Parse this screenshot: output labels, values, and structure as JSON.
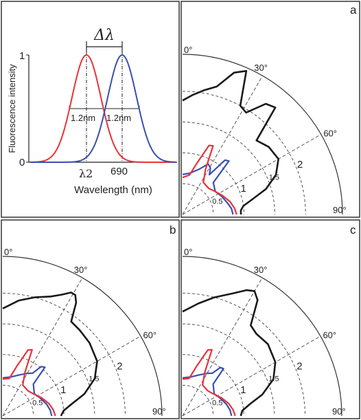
{
  "colors": {
    "red": "#e8333a",
    "blue": "#3a4fb0",
    "black": "#1a1a1a",
    "frame": "#333333"
  },
  "chart_data": [
    {
      "type": "line",
      "xlabel": "Wavelength (nm)",
      "ylabel": "Fluorescence intensity",
      "yticks": [
        "0",
        "1"
      ],
      "xticks": [
        "λ2",
        "690"
      ],
      "annotations": {
        "delta": "Δλ",
        "fwhm_left": "1.2nm",
        "fwhm_right": "1.2nm"
      },
      "series": [
        {
          "color": "red",
          "center": "λ2",
          "peak": 1
        },
        {
          "color": "blue",
          "center": 690,
          "peak": 1
        }
      ]
    },
    {
      "type": "polar",
      "panel_label": "a",
      "angle_labels": [
        "0°",
        "30°",
        "60°",
        "90°"
      ],
      "radial_labels": [
        "0.5",
        "1",
        "1.5",
        "2"
      ],
      "rmax": 2.6,
      "series": [
        {
          "color": "black",
          "points": [
            [
              0,
              1.85
            ],
            [
              5,
              1.95
            ],
            [
              10,
              2.05
            ],
            [
              15,
              2.15
            ],
            [
              20,
              2.45
            ],
            [
              24,
              2.55
            ],
            [
              28,
              2.0
            ],
            [
              32,
              1.95
            ],
            [
              37,
              2.25
            ],
            [
              41,
              2.3
            ],
            [
              45,
              1.7
            ],
            [
              52,
              1.78
            ],
            [
              60,
              1.8
            ],
            [
              67,
              1.65
            ],
            [
              73,
              1.42
            ],
            [
              78,
              1.15
            ],
            [
              82,
              1.0
            ],
            [
              86,
              0.95
            ],
            [
              90,
              0.95
            ]
          ]
        },
        {
          "color": "blue",
          "points": [
            [
              0,
              0.65
            ],
            [
              10,
              0.68
            ],
            [
              20,
              0.78
            ],
            [
              27,
              0.92
            ],
            [
              31,
              0.88
            ],
            [
              34,
              0.78
            ],
            [
              38,
              1.12
            ],
            [
              41,
              1.15
            ],
            [
              44,
              0.72
            ],
            [
              55,
              0.65
            ],
            [
              65,
              0.7
            ],
            [
              75,
              0.75
            ],
            [
              83,
              0.8
            ],
            [
              90,
              0.82
            ]
          ]
        },
        {
          "color": "red",
          "points": [
            [
              0,
              0.6
            ],
            [
              10,
              0.65
            ],
            [
              16,
              0.88
            ],
            [
              21,
              1.2
            ],
            [
              24,
              1.22
            ],
            [
              27,
              0.82
            ],
            [
              33,
              0.62
            ],
            [
              45,
              0.6
            ],
            [
              55,
              0.65
            ],
            [
              65,
              0.72
            ],
            [
              75,
              0.8
            ],
            [
              83,
              0.85
            ],
            [
              90,
              0.88
            ]
          ]
        }
      ]
    },
    {
      "type": "polar",
      "panel_label": "b",
      "angle_labels": [
        "0°",
        "30°",
        "60°",
        "90°"
      ],
      "radial_labels": [
        "0.5",
        "1",
        "1.5",
        "2"
      ],
      "rmax": 2.6,
      "series": [
        {
          "color": "black",
          "points": [
            [
              0,
              1.75
            ],
            [
              8,
              1.9
            ],
            [
              15,
              2.0
            ],
            [
              22,
              2.1
            ],
            [
              26,
              2.2
            ],
            [
              29,
              2.3
            ],
            [
              31,
              2.3
            ],
            [
              33,
              2.2
            ],
            [
              36,
              1.9
            ],
            [
              42,
              1.88
            ],
            [
              50,
              1.85
            ],
            [
              60,
              1.78
            ],
            [
              68,
              1.62
            ],
            [
              75,
              1.38
            ],
            [
              80,
              1.15
            ],
            [
              85,
              1.0
            ],
            [
              90,
              0.95
            ]
          ]
        },
        {
          "color": "blue",
          "points": [
            [
              0,
              0.62
            ],
            [
              12,
              0.65
            ],
            [
              22,
              0.72
            ],
            [
              30,
              0.8
            ],
            [
              35,
              0.85
            ],
            [
              38,
              1.02
            ],
            [
              41,
              1.05
            ],
            [
              44,
              0.72
            ],
            [
              55,
              0.63
            ],
            [
              65,
              0.68
            ],
            [
              75,
              0.74
            ],
            [
              83,
              0.78
            ],
            [
              90,
              0.8
            ]
          ]
        },
        {
          "color": "red",
          "points": [
            [
              0,
              0.6
            ],
            [
              10,
              0.62
            ],
            [
              16,
              0.85
            ],
            [
              21,
              1.15
            ],
            [
              24,
              1.18
            ],
            [
              27,
              0.8
            ],
            [
              33,
              0.6
            ],
            [
              45,
              0.58
            ],
            [
              55,
              0.62
            ],
            [
              65,
              0.7
            ],
            [
              75,
              0.78
            ],
            [
              83,
              0.83
            ],
            [
              90,
              0.86
            ]
          ]
        }
      ]
    },
    {
      "type": "polar",
      "panel_label": "c",
      "angle_labels": [
        "0°",
        "30°",
        "60°",
        "90°"
      ],
      "radial_labels": [
        "0.5",
        "1",
        "1.5",
        "2"
      ],
      "rmax": 2.6,
      "series": [
        {
          "color": "black",
          "points": [
            [
              0,
              1.7
            ],
            [
              8,
              1.85
            ],
            [
              15,
              2.0
            ],
            [
              22,
              2.15
            ],
            [
              27,
              2.3
            ],
            [
              30,
              2.35
            ],
            [
              33,
              2.25
            ],
            [
              37,
              1.85
            ],
            [
              42,
              1.8
            ],
            [
              50,
              1.82
            ],
            [
              60,
              1.75
            ],
            [
              68,
              1.6
            ],
            [
              75,
              1.35
            ],
            [
              80,
              1.12
            ],
            [
              85,
              0.98
            ],
            [
              90,
              0.95
            ]
          ]
        },
        {
          "color": "blue",
          "points": [
            [
              0,
              0.62
            ],
            [
              12,
              0.65
            ],
            [
              22,
              0.72
            ],
            [
              30,
              0.8
            ],
            [
              35,
              0.85
            ],
            [
              38,
              1.0
            ],
            [
              41,
              1.02
            ],
            [
              44,
              0.72
            ],
            [
              55,
              0.63
            ],
            [
              65,
              0.68
            ],
            [
              75,
              0.74
            ],
            [
              83,
              0.78
            ],
            [
              90,
              0.8
            ]
          ]
        },
        {
          "color": "red",
          "points": [
            [
              0,
              0.6
            ],
            [
              10,
              0.62
            ],
            [
              16,
              0.85
            ],
            [
              21,
              1.15
            ],
            [
              24,
              1.18
            ],
            [
              27,
              0.8
            ],
            [
              33,
              0.6
            ],
            [
              45,
              0.58
            ],
            [
              55,
              0.62
            ],
            [
              65,
              0.7
            ],
            [
              75,
              0.78
            ],
            [
              83,
              0.83
            ],
            [
              90,
              0.86
            ]
          ]
        }
      ]
    }
  ]
}
